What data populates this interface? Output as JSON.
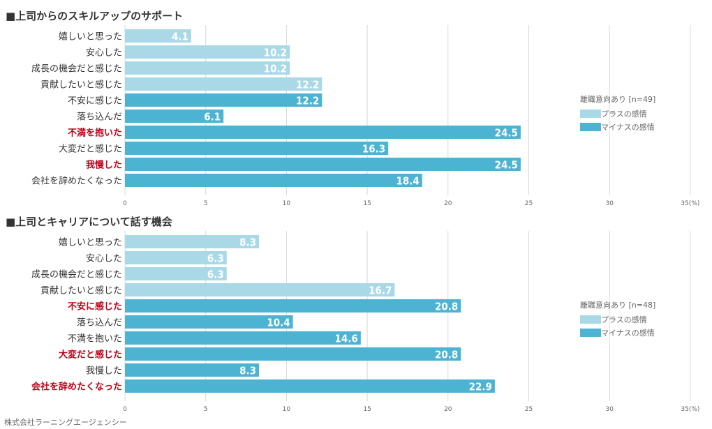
{
  "colors": {
    "plus": "#a9d9e6",
    "minus": "#4cb3d2",
    "highlight": "#c0001a",
    "label": "#333333",
    "grid": "#d8d8d8"
  },
  "legend": {
    "plus_label": "プラスの感情",
    "minus_label": "マイナスの感情"
  },
  "footer": "株式会社ラーニングエージェンシー",
  "chart_data": [
    {
      "type": "bar",
      "orientation": "horizontal",
      "title": "■上司からのスキルアップのサポート",
      "legend_title": "離職意向あり [n=49]",
      "xlim": [
        0,
        35
      ],
      "ticks": [
        0,
        5,
        10,
        15,
        20,
        25,
        30,
        35
      ],
      "tick_labels": [
        "0",
        "5",
        "10",
        "15",
        "20",
        "25",
        "30",
        "35(%)"
      ],
      "categories": [
        "嬉しいと思った",
        "安心した",
        "成長の機会だと感じた",
        "貢献したいと感じた",
        "不安に感じた",
        "落ち込んだ",
        "不満を抱いた",
        "大変だと感じた",
        "我慢した",
        "会社を辞めたくなった"
      ],
      "values": [
        4.1,
        10.2,
        10.2,
        12.2,
        12.2,
        6.1,
        24.5,
        16.3,
        24.5,
        18.4
      ],
      "value_labels": [
        "4.1",
        "10.2",
        "10.2",
        "12.2",
        "12.2",
        "6.1",
        "24.5",
        "16.3",
        "24.5",
        "18.4"
      ],
      "emotion": [
        "plus",
        "plus",
        "plus",
        "plus",
        "minus",
        "minus",
        "minus",
        "minus",
        "minus",
        "minus"
      ],
      "highlighted": [
        false,
        false,
        false,
        false,
        false,
        false,
        true,
        false,
        true,
        false
      ]
    },
    {
      "type": "bar",
      "orientation": "horizontal",
      "title": "■上司とキャリアについて話す機会",
      "legend_title": "離職意向あり [n=48]",
      "xlim": [
        0,
        35
      ],
      "ticks": [
        0,
        5,
        10,
        15,
        20,
        25,
        30,
        35
      ],
      "tick_labels": [
        "0",
        "5",
        "10",
        "15",
        "20",
        "25",
        "30",
        "35(%)"
      ],
      "categories": [
        "嬉しいと思った",
        "安心した",
        "成長の機会だと感じた",
        "貢献したいと感じた",
        "不安に感じた",
        "落ち込んだ",
        "不満を抱いた",
        "大変だと感じた",
        "我慢した",
        "会社を辞めたくなった"
      ],
      "values": [
        8.3,
        6.3,
        6.3,
        16.7,
        20.8,
        10.4,
        14.6,
        20.8,
        8.3,
        22.9
      ],
      "value_labels": [
        "8.3",
        "6.3",
        "6.3",
        "16.7",
        "20.8",
        "10.4",
        "14.6",
        "20.8",
        "8.3",
        "22.9"
      ],
      "emotion": [
        "plus",
        "plus",
        "plus",
        "plus",
        "minus",
        "minus",
        "minus",
        "minus",
        "minus",
        "minus"
      ],
      "highlighted": [
        false,
        false,
        false,
        false,
        true,
        false,
        false,
        true,
        false,
        true
      ]
    }
  ]
}
